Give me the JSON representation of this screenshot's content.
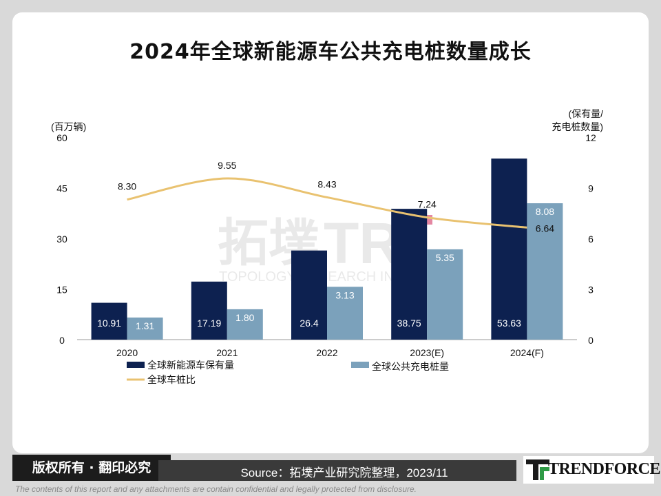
{
  "title": "2024年全球新能源车公共充电桩数量成长",
  "chart_data": {
    "type": "bar",
    "categories": [
      "2020",
      "2021",
      "2022",
      "2023(E)",
      "2024(F)"
    ],
    "series": [
      {
        "name": "全球新能源车保有量",
        "type": "bar",
        "axis": "left",
        "color": "#0d2150",
        "values": [
          10.91,
          17.19,
          26.4,
          38.75,
          53.63
        ],
        "labels": [
          "10.91",
          "17.19",
          "26.4",
          "38.75",
          "53.63"
        ]
      },
      {
        "name": "全球公共充电桩量",
        "type": "bar",
        "axis": "right",
        "color": "#7ba1bb",
        "values": [
          1.31,
          1.8,
          3.13,
          5.35,
          8.08
        ],
        "labels": [
          "1.31",
          "1.80",
          "3.13",
          "5.35",
          "8.08"
        ]
      },
      {
        "name": "全球车桩比",
        "type": "line",
        "axis": "right",
        "color": "#e9c270",
        "values": [
          8.3,
          9.55,
          8.43,
          7.24,
          6.64
        ],
        "labels": [
          "8.30",
          "9.55",
          "8.43",
          "7.24",
          "6.64"
        ]
      }
    ],
    "left_axis": {
      "label": "(百万辆)",
      "ylim": [
        0,
        60
      ],
      "ticks": [
        "0",
        "15",
        "30",
        "45",
        "60"
      ]
    },
    "right_axis": {
      "label_line1": "(保有量/",
      "label_line2": "充电桩数量)",
      "ylim": [
        0,
        12
      ],
      "ticks": [
        "0",
        "3",
        "6",
        "9",
        "12"
      ]
    },
    "legend_placement": "bottom",
    "grid": false
  },
  "watermark": {
    "main": "拓墣",
    "latin": "TRI",
    "sub": "TOPOLOGY RESEARCH INSTITUTE"
  },
  "footer": {
    "copyright": "版权所有 · 翻印必究",
    "source": "Source：拓墣产业研究院整理，2023/11",
    "logo": "TRENDFORCE",
    "disclaimer": "The contents of this report and any attachments are contain confidential and legally protected from disclosure."
  },
  "colors": {
    "navy": "#0d2150",
    "steel": "#7ba1bb",
    "gold": "#e9c270",
    "accent": "#d9547a"
  }
}
